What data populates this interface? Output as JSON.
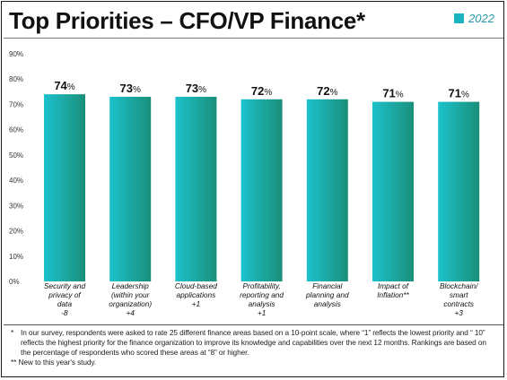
{
  "title": "Top Priorities – CFO/VP Finance*",
  "legend": {
    "label": "2022",
    "color": "#1bb3be"
  },
  "colors": {
    "bar_light": "#1cc2cc",
    "bar_dark": "#1a8f7a",
    "axis_text": "#333333",
    "grid": "#e6e6e6"
  },
  "chart_data": {
    "type": "bar",
    "ylim": [
      0,
      90
    ],
    "ytick_values": [
      0,
      10,
      20,
      30,
      40,
      50,
      60,
      70,
      80,
      90
    ],
    "ytick_labels": [
      "0%",
      "10%",
      "20%",
      "30%",
      "40%",
      "50%",
      "60%",
      "70%",
      "80%",
      "90%"
    ],
    "categories": [
      [
        "Security and",
        "privacy of",
        "data",
        "-8"
      ],
      [
        "Leadership",
        "(within your",
        "organization)",
        "+4"
      ],
      [
        "Cloud-based",
        "applications",
        "+1"
      ],
      [
        "Profitability,",
        "reporting and",
        "analysis",
        "+1"
      ],
      [
        "Financial",
        "planning and",
        "analysis"
      ],
      [
        "Impact of",
        "Inflation**"
      ],
      [
        "Blockchain/",
        "smart",
        "contracts",
        "+3"
      ]
    ],
    "series": [
      {
        "name": "2022",
        "values": [
          74,
          73,
          73,
          72,
          72,
          71,
          71
        ]
      }
    ],
    "value_labels": [
      "74%",
      "73%",
      "73%",
      "72%",
      "72%",
      "71%",
      "71%"
    ]
  },
  "footnotes": {
    "note1_mark": "*",
    "note1_text": "In our survey, respondents were asked to rate 25 different finance areas based on a 10-point scale, where “1” reflects the lowest priority and “ 10” reflects the highest priority for the finance organization to improve its knowledge and capabilities over the next 12 months. Rankings are based on the percentage of respondents who scored these areas at “8” or higher.",
    "note2_text": "** New to this year's study."
  }
}
